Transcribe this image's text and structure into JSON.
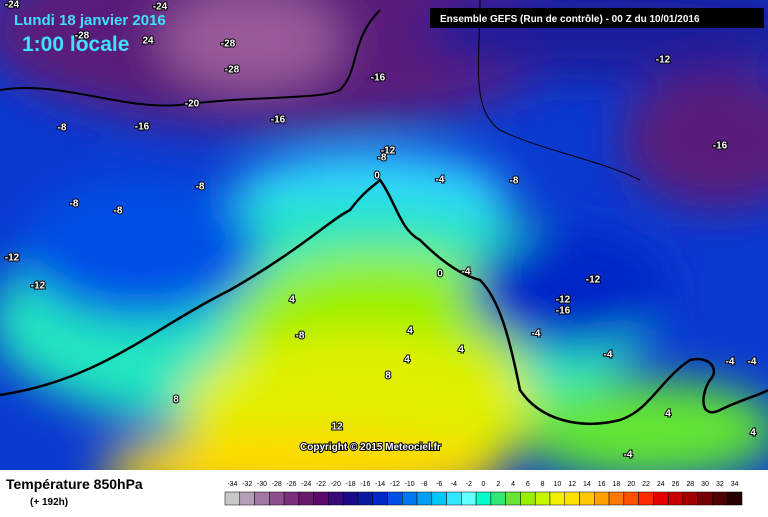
{
  "header": {
    "date": "Lundi 18 janvier 2016",
    "time": "1:00 locale",
    "run": "Ensemble GEFS  (Run de contrôle)  - 00 Z du 10/01/2016"
  },
  "map": {
    "labels": [
      "-24",
      "-24",
      "-28",
      "24",
      "-28",
      "-28",
      "-16",
      "-12",
      "-20",
      "-16",
      "-16",
      "-8",
      "-16",
      "-12",
      "-8",
      "0",
      "-4",
      "-8",
      "-8",
      "-8",
      "-8",
      "-12",
      "-12",
      "-4",
      "0",
      "-12",
      "4",
      "-12",
      "-16",
      "4",
      "-8",
      "-4",
      "4",
      "-4",
      "4",
      "-4",
      "-4",
      "8",
      "8",
      "12",
      "4",
      "-4",
      "4"
    ],
    "copyright": "Copyright © 2015 Meteociel.fr"
  },
  "footer": {
    "title": "Température 850hPa",
    "lead": "(+ 192h)",
    "scale": {
      "ticks": [
        -34,
        -32,
        -30,
        -28,
        -26,
        -24,
        -22,
        -20,
        -18,
        -16,
        -14,
        -12,
        -10,
        -8,
        -6,
        -4,
        -2,
        0,
        2,
        4,
        6,
        8,
        10,
        12,
        14,
        16,
        18,
        20,
        22,
        24,
        26,
        28,
        30,
        32,
        34
      ],
      "colors": [
        "#c8c8c8",
        "#b4a0b4",
        "#a078a0",
        "#8c508c",
        "#7a307a",
        "#6a1a6a",
        "#5a0a6a",
        "#3a0a7a",
        "#1a0a8a",
        "#0a1aa0",
        "#0028c8",
        "#0050e6",
        "#0078f0",
        "#00a0f5",
        "#00c8fa",
        "#32e6ff",
        "#64ffff",
        "#00ffc8",
        "#32e678",
        "#64e632",
        "#96f000",
        "#c8f500",
        "#f0f000",
        "#ffe100",
        "#ffc800",
        "#ffa000",
        "#ff7800",
        "#ff5000",
        "#ff2800",
        "#e60000",
        "#c80000",
        "#a00000",
        "#780000",
        "#500000",
        "#280000"
      ]
    }
  }
}
